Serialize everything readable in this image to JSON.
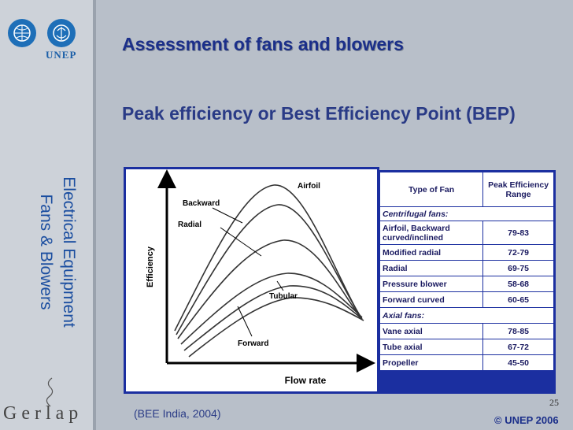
{
  "header": {
    "title": "Assessment of fans and blowers",
    "subtitle": "Peak efficiency or Best Efficiency Point (BEP)"
  },
  "sidebar": {
    "logo_text": "UNEP",
    "vertical_title_line1": "Electrical Equipment",
    "vertical_title_line2": "Fans & Blowers",
    "bottom_logo": "Gerlap"
  },
  "chart": {
    "ylabel": "Efficiency",
    "xlabel": "Flow rate",
    "curves": {
      "airfoil": "Airfoil",
      "backward": "Backward",
      "radial": "Radial",
      "tubular": "Tubular",
      "forward": "Forward"
    }
  },
  "table": {
    "header_type": "Type of Fan",
    "header_range": "Peak Efficiency Range",
    "centrifugal_label": "Centrifugal fans:",
    "axial_label": "Axial fans:",
    "centrifugal": [
      {
        "type": "Airfoil, Backward curved/inclined",
        "range": "79-83"
      },
      {
        "type": "Modified radial",
        "range": "72-79"
      },
      {
        "type": "Radial",
        "range": "69-75"
      },
      {
        "type": "Pressure blower",
        "range": "58-68"
      },
      {
        "type": "Forward curved",
        "range": "60-65"
      }
    ],
    "axial": [
      {
        "type": "Vane axial",
        "range": "78-85"
      },
      {
        "type": "Tube axial",
        "range": "67-72"
      },
      {
        "type": "Propeller",
        "range": "45-50"
      }
    ]
  },
  "footer": {
    "page_number": "25",
    "source": "(BEE India, 2004)",
    "copyright": "© UNEP 2006"
  }
}
